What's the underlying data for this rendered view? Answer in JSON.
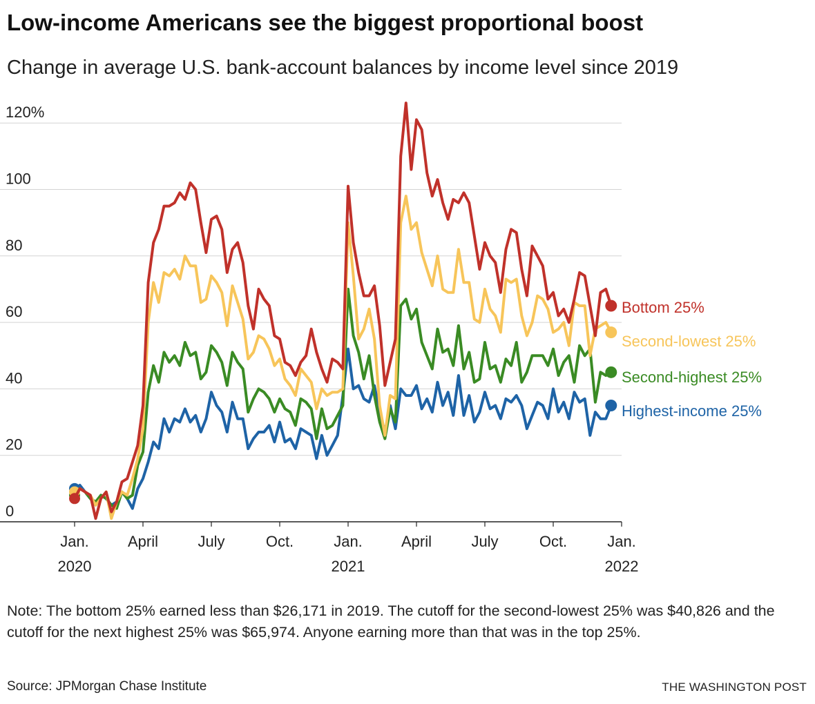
{
  "header": {
    "title": "Low-income Americans see the biggest proportional boost",
    "subtitle": "Change in average U.S. bank-account balances by income level since 2019"
  },
  "footer": {
    "note": "Note: The bottom 25% earned less than $26,171 in 2019. The cutoff for the second-lowest 25% was $40,826 and the cutoff for the next highest 25% was $65,974. Anyone earning more than that was in the top 25%.",
    "source": "Source: JPMorgan Chase Institute",
    "credit": "THE WASHINGTON POST"
  },
  "chart_data": {
    "type": "line",
    "title": "Low-income Americans see the biggest proportional boost",
    "subtitle": "Change in average U.S. bank-account balances by income level since 2019",
    "xlabel": "",
    "ylabel": "",
    "x_range": [
      0,
      104
    ],
    "ylim": [
      0,
      125
    ],
    "y_ticks": [
      0,
      20,
      40,
      60,
      80,
      100,
      120
    ],
    "y_tick_labels": [
      "0",
      "20",
      "40",
      "60",
      "80",
      "100",
      "120%"
    ],
    "x_ticks": [
      {
        "x": 0,
        "line1": "Jan.",
        "line2": "2020"
      },
      {
        "x": 13,
        "line1": "April",
        "line2": ""
      },
      {
        "x": 26,
        "line1": "July",
        "line2": ""
      },
      {
        "x": 39,
        "line1": "Oct.",
        "line2": ""
      },
      {
        "x": 52,
        "line1": "Jan.",
        "line2": "2021"
      },
      {
        "x": 65,
        "line1": "April",
        "line2": ""
      },
      {
        "x": 78,
        "line1": "July",
        "line2": ""
      },
      {
        "x": 91,
        "line1": "Oct.",
        "line2": ""
      },
      {
        "x": 104,
        "line1": "Jan.",
        "line2": "2022"
      }
    ],
    "grid": "horizontal",
    "legend": "direct labels at line ends",
    "series": [
      {
        "name": "Bottom 25%",
        "label": "Bottom 25%",
        "color": "#c0312a",
        "values": [
          7,
          10,
          9,
          8,
          1,
          7,
          9,
          3,
          6,
          12,
          13,
          18,
          23,
          35,
          72,
          84,
          88,
          95,
          95,
          96,
          99,
          97,
          102,
          100,
          90,
          81,
          91,
          92,
          88,
          75,
          82,
          84,
          78,
          65,
          58,
          70,
          67,
          65,
          56,
          55,
          48,
          47,
          44,
          48,
          50,
          58,
          51,
          46,
          42,
          49,
          48,
          46,
          101,
          84,
          75,
          68,
          68,
          71,
          59,
          41,
          48,
          55,
          110,
          126,
          106,
          121,
          118,
          105,
          98,
          103,
          96,
          91,
          97,
          96,
          99,
          96,
          86,
          76,
          84,
          80,
          78,
          69,
          82,
          88,
          87,
          76,
          68,
          83,
          80,
          77,
          67,
          69,
          62,
          64,
          60,
          67,
          75,
          74,
          65,
          56,
          69,
          70,
          65
        ]
      },
      {
        "name": "Second-lowest 25%",
        "label": "Second-lowest 25%",
        "color": "#f7c55a",
        "values": [
          9,
          10,
          9,
          8,
          5,
          7,
          9,
          1,
          6,
          9,
          8,
          13,
          19,
          28,
          60,
          72,
          66,
          75,
          74,
          76,
          73,
          80,
          77,
          77,
          66,
          67,
          74,
          72,
          69,
          59,
          71,
          66,
          61,
          49,
          51,
          56,
          55,
          52,
          47,
          49,
          43,
          41,
          38,
          46,
          44,
          42,
          34,
          40,
          38,
          39,
          39,
          40,
          90,
          74,
          55,
          58,
          64,
          55,
          35,
          26,
          38,
          37,
          90,
          98,
          88,
          90,
          81,
          76,
          71,
          80,
          70,
          69,
          69,
          82,
          72,
          72,
          61,
          60,
          70,
          64,
          62,
          57,
          73,
          72,
          73,
          62,
          56,
          60,
          68,
          67,
          64,
          57,
          58,
          60,
          53,
          66,
          65,
          65,
          50,
          58,
          59,
          60,
          57
        ]
      },
      {
        "name": "Second-highest 25%",
        "label": "Second-highest 25%",
        "color": "#3a8b24",
        "values": [
          8,
          10,
          9,
          7,
          6,
          8,
          7,
          5,
          4,
          9,
          7,
          8,
          17,
          21,
          39,
          47,
          42,
          51,
          48,
          50,
          47,
          54,
          50,
          51,
          43,
          45,
          53,
          51,
          48,
          41,
          51,
          48,
          46,
          33,
          37,
          40,
          39,
          37,
          33,
          37,
          34,
          33,
          29,
          37,
          36,
          34,
          25,
          34,
          28,
          29,
          32,
          35,
          70,
          56,
          51,
          43,
          50,
          38,
          30,
          25,
          34,
          30,
          65,
          67,
          61,
          64,
          54,
          50,
          46,
          58,
          51,
          52,
          47,
          59,
          46,
          51,
          42,
          43,
          54,
          46,
          47,
          42,
          49,
          47,
          54,
          42,
          45,
          50,
          50,
          50,
          47,
          52,
          44,
          48,
          50,
          42,
          53,
          50,
          52,
          36,
          45,
          44,
          45
        ]
      },
      {
        "name": "Highest-income 25%",
        "label": "Highest-income 25%",
        "color": "#1e63a6",
        "values": [
          10,
          11,
          9,
          7,
          5,
          8,
          7,
          5,
          6,
          9,
          7,
          4,
          10,
          13,
          18,
          24,
          22,
          31,
          27,
          31,
          30,
          34,
          30,
          32,
          27,
          31,
          39,
          35,
          33,
          27,
          36,
          31,
          31,
          22,
          25,
          27,
          27,
          29,
          24,
          30,
          24,
          25,
          22,
          28,
          27,
          26,
          19,
          26,
          20,
          23,
          26,
          38,
          52,
          40,
          41,
          37,
          36,
          41,
          33,
          27,
          35,
          28,
          40,
          38,
          38,
          41,
          34,
          37,
          33,
          42,
          35,
          39,
          32,
          44,
          32,
          38,
          30,
          33,
          39,
          34,
          35,
          31,
          37,
          36,
          38,
          35,
          28,
          32,
          36,
          35,
          31,
          40,
          33,
          36,
          31,
          39,
          36,
          37,
          26,
          33,
          31,
          31,
          35
        ]
      }
    ]
  }
}
